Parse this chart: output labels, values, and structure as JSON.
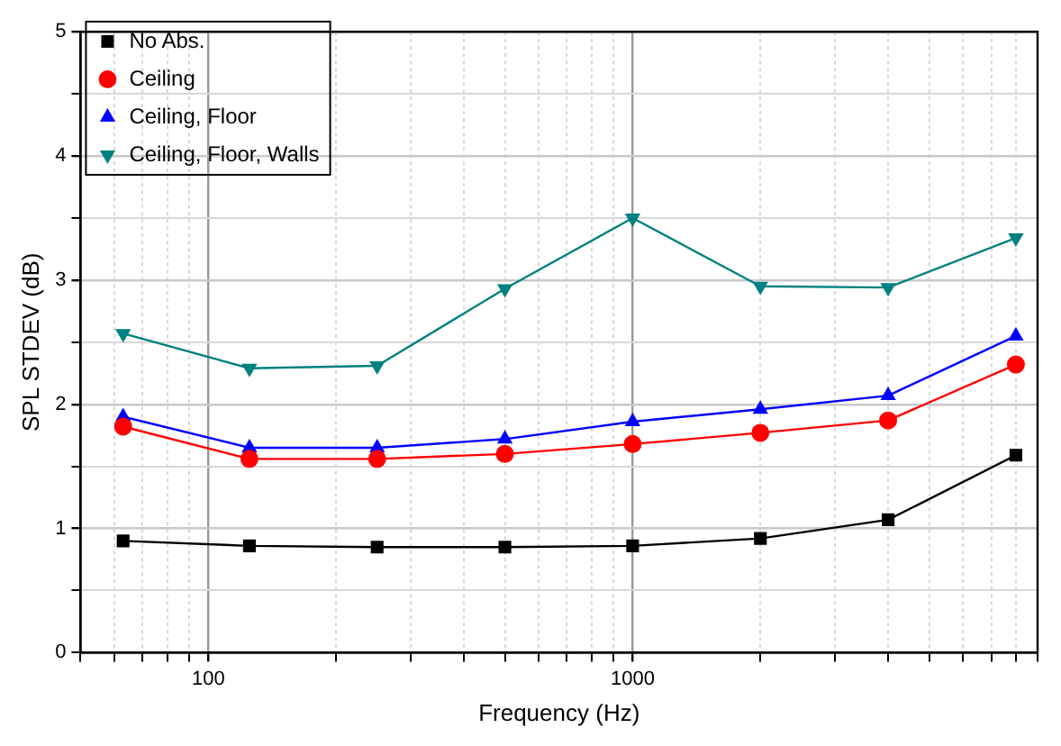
{
  "chart_data": {
    "type": "line",
    "xlabel": "Frequency (Hz)",
    "ylabel": "SPL STDEV (dB)",
    "log": "x",
    "grid": true,
    "legend": "top left",
    "xlim": [
      50,
      9000
    ],
    "xticks": [
      {
        "value": 50,
        "label": null
      },
      {
        "value": 60,
        "label": null
      },
      {
        "value": 70,
        "label": null
      },
      {
        "value": 80,
        "label": null
      },
      {
        "value": 90,
        "label": null
      },
      100,
      {
        "value": 200,
        "label": null
      },
      {
        "value": 300,
        "label": null
      },
      {
        "value": 400,
        "label": null
      },
      {
        "value": 500,
        "label": null
      },
      {
        "value": 600,
        "label": null
      },
      {
        "value": 700,
        "label": null
      },
      {
        "value": 800,
        "label": null
      },
      {
        "value": 900,
        "label": null
      },
      1000,
      {
        "value": 2000,
        "label": null
      },
      {
        "value": 3000,
        "label": null
      },
      {
        "value": 4000,
        "label": null
      },
      {
        "value": 5000,
        "label": null
      },
      {
        "value": 6000,
        "label": null
      },
      {
        "value": 7000,
        "label": null
      },
      {
        "value": 8000,
        "label": null
      },
      {
        "value": 9000,
        "label": null
      }
    ],
    "ylim": [
      0,
      5
    ],
    "yticks": [
      0,
      {
        "value": 0.5,
        "label": null
      },
      1,
      {
        "value": 1.5,
        "label": null
      },
      2,
      {
        "value": 2.5,
        "label": null
      },
      3,
      {
        "value": 3.5,
        "label": null
      },
      4,
      {
        "value": 4.5,
        "label": null
      },
      5
    ],
    "x": [
      63,
      125,
      250,
      500,
      1000,
      2000,
      4000,
      8000
    ],
    "series": [
      {
        "name": "No Abs.",
        "color": "#000000",
        "marker": "square",
        "values": [
          0.9,
          0.86,
          0.85,
          0.85,
          0.86,
          0.92,
          1.07,
          1.59
        ]
      },
      {
        "name": "Ceiling",
        "color": "#ff0000",
        "marker": "circle",
        "values": [
          1.82,
          1.56,
          1.56,
          1.6,
          1.68,
          1.77,
          1.87,
          2.32
        ]
      },
      {
        "name": "Ceiling, Floor",
        "color": "#0000ff",
        "marker": "triangle",
        "values": [
          1.9,
          1.65,
          1.65,
          1.72,
          1.86,
          1.96,
          2.07,
          2.55
        ]
      },
      {
        "name": "Ceiling, Floor, Walls",
        "color": "#008080",
        "marker": "triangle_down",
        "values": [
          2.57,
          2.29,
          2.31,
          2.93,
          3.5,
          2.95,
          2.94,
          3.34
        ]
      }
    ]
  }
}
